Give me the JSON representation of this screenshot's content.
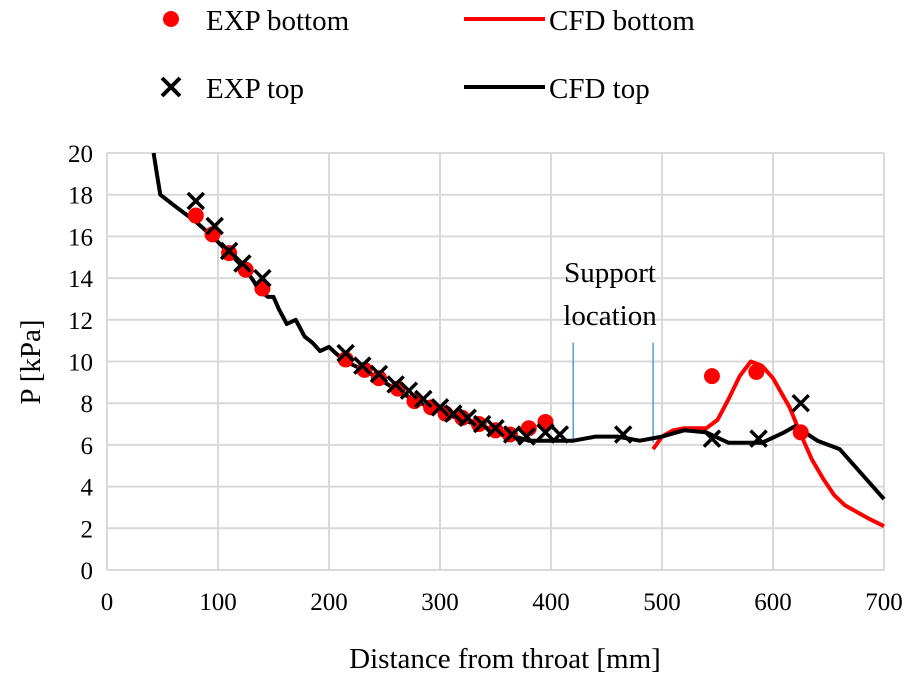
{
  "chart_data": {
    "type": "line",
    "xlabel": "Distance from throat [mm]",
    "ylabel": "P [kPa]",
    "xlim": [
      0,
      700
    ],
    "ylim": [
      0,
      20
    ],
    "xticks": [
      "0",
      "100",
      "200",
      "300",
      "400",
      "500",
      "600",
      "700"
    ],
    "yticks": [
      "0",
      "2",
      "4",
      "6",
      "8",
      "10",
      "12",
      "14",
      "16",
      "18",
      "20"
    ],
    "grid": true,
    "legend_position": "top",
    "annotation": {
      "text_line1": "Support",
      "text_line2": "location",
      "x_lines": [
        420,
        492
      ],
      "color": "#5b9bd5"
    },
    "series": [
      {
        "name": "EXP bottom",
        "kind": "scatter-dot",
        "color": "#ff0000",
        "x": [
          80,
          95,
          110,
          125,
          140,
          215,
          232,
          245,
          262,
          277,
          292,
          305,
          320,
          335,
          350,
          363,
          380,
          395,
          545,
          585,
          625
        ],
        "y": [
          17,
          16.1,
          15.2,
          14.4,
          13.5,
          10.1,
          9.6,
          9.2,
          8.7,
          8.1,
          7.8,
          7.5,
          7.3,
          7.0,
          6.7,
          6.5,
          6.8,
          7.1,
          9.3,
          9.5,
          6.6
        ]
      },
      {
        "name": "CFD bottom",
        "kind": "line",
        "color": "#ff0000",
        "x": [
          492,
          500,
          510,
          520,
          540,
          550,
          560,
          570,
          580,
          590,
          600,
          615,
          625,
          635,
          645,
          655,
          665,
          685,
          700
        ],
        "y": [
          5.8,
          6.4,
          6.7,
          6.8,
          6.8,
          7.2,
          8.2,
          9.3,
          10,
          9.8,
          9.2,
          7.8,
          6.5,
          5.3,
          4.4,
          3.6,
          3.1,
          2.5,
          2.1
        ]
      },
      {
        "name": "EXP top",
        "kind": "scatter-x",
        "color": "#000000",
        "x": [
          80,
          97,
          110,
          122,
          140,
          215,
          230,
          245,
          260,
          272,
          285,
          300,
          312,
          325,
          338,
          350,
          365,
          378,
          395,
          408,
          465,
          545,
          587,
          625
        ],
        "y": [
          17.7,
          16.5,
          15.3,
          14.7,
          14,
          10.4,
          9.8,
          9.4,
          8.9,
          8.6,
          8.2,
          7.8,
          7.5,
          7.3,
          7.0,
          6.8,
          6.5,
          6.4,
          6.6,
          6.5,
          6.5,
          6.3,
          6.3,
          8.0
        ]
      },
      {
        "name": "CFD top",
        "kind": "line",
        "color": "#000000",
        "x": [
          42,
          45,
          48,
          60,
          80,
          95,
          110,
          125,
          138,
          145,
          150,
          155,
          162,
          170,
          178,
          185,
          192,
          200,
          206,
          215,
          235,
          265,
          290,
          320,
          355,
          380,
          420,
          440,
          460,
          480,
          500,
          520,
          540,
          560,
          590,
          610,
          620,
          640,
          660,
          680,
          700
        ],
        "y": [
          20,
          19,
          18,
          17.5,
          16.7,
          16,
          15.2,
          14.4,
          13.4,
          13.1,
          13.1,
          12.5,
          11.8,
          12.0,
          11.2,
          10.9,
          10.5,
          10.7,
          10.4,
          10.0,
          9.5,
          8.5,
          7.8,
          7.2,
          6.6,
          6.2,
          6.2,
          6.4,
          6.4,
          6.2,
          6.4,
          6.7,
          6.6,
          6.1,
          6.1,
          6.6,
          6.9,
          6.2,
          5.8,
          4.6,
          3.4
        ]
      }
    ]
  }
}
